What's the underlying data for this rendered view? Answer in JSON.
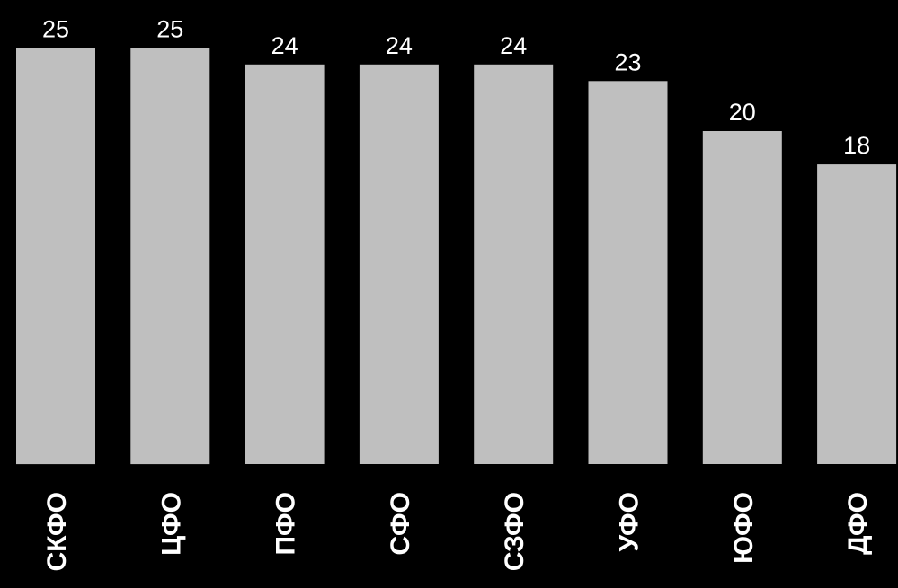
{
  "chart_data": {
    "type": "bar",
    "categories": [
      "СКФО",
      "ЦФО",
      "ПФО",
      "СФО",
      "СЗФО",
      "УФО",
      "ЮФО",
      "ДФО"
    ],
    "values": [
      25,
      25,
      24,
      24,
      24,
      23,
      20,
      18
    ],
    "data_labels": [
      "25",
      "25",
      "24",
      "24",
      "24",
      "23",
      "20",
      "18"
    ],
    "ylim": [
      0,
      25.4
    ],
    "grid": false,
    "legend": "none",
    "category_label_orientation": "vertical"
  },
  "colors": {
    "background": "#000000",
    "bar": "#bfbfbf",
    "text": "#ffffff"
  }
}
